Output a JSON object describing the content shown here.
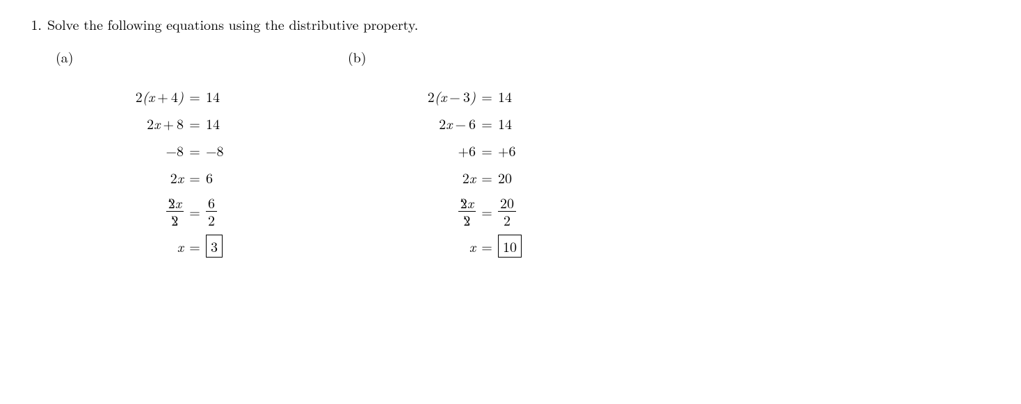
{
  "problem_number": "1.",
  "problem_text": "Solve the following equations using the distributive property.",
  "font_size": 20,
  "text_color": "#000000",
  "background_color": "#ffffff",
  "box_border_color": "#000000",
  "sub_problems": {
    "a": {
      "label": "(a)",
      "steps": {
        "s1_lhs": "2(x + 4)",
        "s1_rhs": "14",
        "s2_lhs": "2x + 8",
        "s2_rhs": "14",
        "s3_lhs": "−8",
        "s3_rhs": "−8",
        "s4_lhs": "2x",
        "s4_rhs": "6",
        "s5_num_coef": "2",
        "s5_num_var": "x",
        "s5_den": "2",
        "s5_rhs_num": "6",
        "s5_rhs_den": "2",
        "s6_lhs": "x",
        "s6_answer": "3"
      }
    },
    "b": {
      "label": "(b)",
      "steps": {
        "s1_lhs": "2(x − 3)",
        "s1_rhs": "14",
        "s2_lhs": "2x − 6",
        "s2_rhs": "14",
        "s3_lhs": "+6",
        "s3_rhs": "+6",
        "s4_lhs": "2x",
        "s4_rhs": "20",
        "s5_num_coef": "2",
        "s5_num_var": "x",
        "s5_den": "2",
        "s5_rhs_num": "20",
        "s5_rhs_den": "2",
        "s6_lhs": "x",
        "s6_answer": "10"
      }
    }
  }
}
